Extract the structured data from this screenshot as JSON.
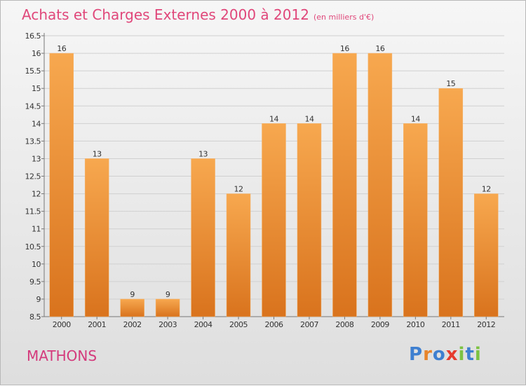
{
  "title": "Achats et Charges Externes 2000 à 2012",
  "unit": "(en milliers d'€)",
  "commune": "MATHONS",
  "logo": {
    "text": "Proxiti"
  },
  "colors": {
    "bar_light": "#f7a84f",
    "bar_dark": "#d9731d",
    "title": "#e0477a",
    "commune": "#d43a7c",
    "grid": "#d0d0d0",
    "logo_letters": [
      "#3e7fd0",
      "#e8842a",
      "#3e7fd0",
      "#e63b2e",
      "#7cc242",
      "#3e7fd0",
      "#7cc242"
    ]
  },
  "chart_data": {
    "type": "bar",
    "title": "Achats et Charges Externes 2000 à 2012",
    "xlabel": "",
    "ylabel": "",
    "categories": [
      "2000",
      "2001",
      "2002",
      "2003",
      "2004",
      "2005",
      "2006",
      "2007",
      "2008",
      "2009",
      "2010",
      "2011",
      "2012"
    ],
    "values": [
      16,
      13,
      9,
      9,
      13,
      12,
      14,
      14,
      16,
      16,
      14,
      15,
      12
    ],
    "ylim": [
      8.5,
      16.5
    ],
    "yticks": [
      "8.5",
      "9",
      "9.5",
      "10",
      "10.5",
      "11",
      "11.5",
      "12",
      "12.5",
      "13",
      "13.5",
      "14",
      "14.5",
      "15",
      "15.5",
      "16",
      "16.5"
    ],
    "grid": true,
    "data_labels": true
  }
}
